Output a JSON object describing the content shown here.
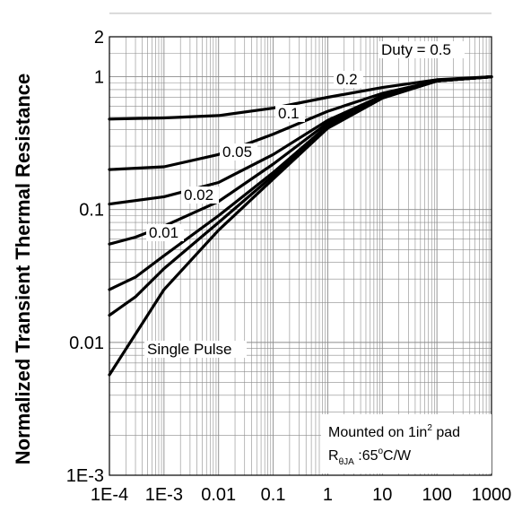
{
  "chart_data": {
    "type": "line",
    "title": "",
    "xlabel": "",
    "ylabel": "Normalized Transient Thermal Resistance",
    "x_scale": "log",
    "y_scale": "log",
    "xlim": [
      0.0001,
      1000
    ],
    "ylim": [
      0.001,
      2
    ],
    "x_tick_labels": [
      "1E-4",
      "1E-3",
      "0.01",
      "0.1",
      "1",
      "10",
      "100",
      "1000"
    ],
    "x_tick_values": [
      0.0001,
      0.001,
      0.01,
      0.1,
      1,
      10,
      100,
      1000
    ],
    "y_tick_labels": [
      "1E-3",
      "0.01",
      "0.1",
      "1",
      "2"
    ],
    "y_tick_values": [
      0.001,
      0.01,
      0.1,
      1,
      2
    ],
    "grid": true,
    "series": [
      {
        "name": "Duty = 0.5",
        "label_text": "Duty = 0.5",
        "x": [
          0.0001,
          0.001,
          0.01,
          0.1,
          1,
          10,
          100,
          1000
        ],
        "y": [
          0.48,
          0.49,
          0.51,
          0.58,
          0.7,
          0.83,
          0.95,
          1.0
        ]
      },
      {
        "name": "0.2",
        "label_text": "0.2",
        "x": [
          0.0001,
          0.001,
          0.01,
          0.1,
          1,
          10,
          100,
          1000
        ],
        "y": [
          0.2,
          0.21,
          0.26,
          0.37,
          0.55,
          0.75,
          0.93,
          1.0
        ]
      },
      {
        "name": "0.1",
        "label_text": "0.1",
        "x": [
          0.0001,
          0.001,
          0.01,
          0.1,
          1,
          10,
          100,
          1000
        ],
        "y": [
          0.11,
          0.125,
          0.16,
          0.26,
          0.47,
          0.72,
          0.93,
          1.0
        ]
      },
      {
        "name": "0.05",
        "label_text": "0.05",
        "x": [
          0.0001,
          0.0003,
          0.001,
          0.01,
          0.1,
          1,
          10,
          100,
          1000
        ],
        "y": [
          0.055,
          0.062,
          0.075,
          0.115,
          0.22,
          0.45,
          0.71,
          0.93,
          1.0
        ]
      },
      {
        "name": "0.02",
        "label_text": "0.02",
        "x": [
          0.0001,
          0.0003,
          0.001,
          0.01,
          0.1,
          1,
          10,
          100,
          1000
        ],
        "y": [
          0.025,
          0.031,
          0.045,
          0.09,
          0.19,
          0.43,
          0.7,
          0.93,
          1.0
        ]
      },
      {
        "name": "0.01",
        "label_text": "0.01",
        "x": [
          0.0001,
          0.0003,
          0.001,
          0.01,
          0.1,
          1,
          10,
          100,
          1000
        ],
        "y": [
          0.016,
          0.022,
          0.036,
          0.08,
          0.18,
          0.42,
          0.7,
          0.93,
          1.0
        ]
      },
      {
        "name": "Single Pulse",
        "label_text": "Single Pulse",
        "x": [
          0.0001,
          0.001,
          0.01,
          0.1,
          1,
          10,
          100,
          1000
        ],
        "y": [
          0.0057,
          0.025,
          0.07,
          0.17,
          0.41,
          0.69,
          0.93,
          1.0
        ]
      }
    ],
    "annotation": {
      "line1_main": "Mounted on 1in",
      "line1_sup": "2",
      "line1_tail": " pad",
      "line2_main": "R",
      "line2_sub": "θJA",
      "line2_value": " :65",
      "line2_sup": "o",
      "line2_tail": "C/W"
    }
  }
}
